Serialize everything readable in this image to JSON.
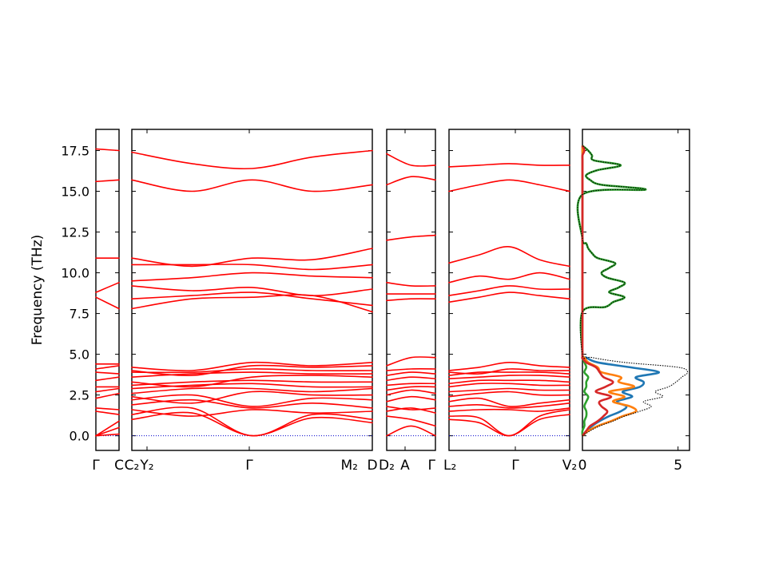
{
  "chart_data": {
    "type": "line",
    "title": "",
    "ylabel": "Frequency (THz)",
    "ylim": [
      -0.9,
      18.8
    ],
    "y_ticks": [
      "0.0",
      "2.5",
      "5.0",
      "7.5",
      "10.0",
      "12.5",
      "15.0",
      "17.5"
    ],
    "y_tick_values": [
      0,
      2.5,
      5,
      7.5,
      10,
      12.5,
      15,
      17.5
    ],
    "band_color": "#ff0000",
    "zero_line_color": "#0000cc",
    "path_labels": [
      "Γ",
      "C",
      "C₂",
      "Y₂",
      "Γ",
      "M₂",
      "D",
      "D₂",
      "A",
      "Γ",
      "L₂",
      "Γ",
      "V₂"
    ],
    "segments": [
      {
        "from": "Γ",
        "to": "C",
        "bands": [
          [
            0.0,
            0.1
          ],
          [
            0.0,
            0.5
          ],
          [
            0.0,
            0.9
          ],
          [
            1.5,
            1.3
          ],
          [
            1.7,
            1.6
          ],
          [
            2.3,
            2.6
          ],
          [
            2.7,
            2.9
          ],
          [
            3.0,
            3.0
          ],
          [
            3.4,
            3.6
          ],
          [
            3.9,
            3.8
          ],
          [
            4.1,
            4.3
          ],
          [
            4.4,
            4.4
          ],
          [
            8.5,
            7.8
          ],
          [
            8.8,
            9.4
          ],
          [
            10.9,
            10.9
          ],
          [
            15.6,
            15.7
          ],
          [
            17.6,
            17.5
          ]
        ]
      },
      {
        "from": "C₂|Y₂",
        "to": "Γ",
        "continues_to": "M₂|D",
        "bands": [
          [
            1.0,
            1.4,
            0.0,
            1.1,
            0.8
          ],
          [
            1.3,
            1.7,
            0.0,
            1.3,
            1.0
          ],
          [
            1.6,
            1.2,
            1.6,
            1.4,
            1.5
          ],
          [
            1.9,
            2.2,
            1.7,
            2.0,
            1.7
          ],
          [
            2.2,
            2.5,
            1.8,
            2.3,
            2.2
          ],
          [
            2.4,
            2.0,
            2.7,
            2.5,
            2.5
          ],
          [
            2.6,
            2.9,
            2.9,
            2.7,
            2.9
          ],
          [
            2.9,
            3.1,
            3.2,
            3.0,
            3.0
          ],
          [
            3.1,
            3.3,
            3.4,
            3.3,
            3.3
          ],
          [
            3.3,
            3.0,
            3.6,
            3.7,
            3.6
          ],
          [
            3.6,
            3.8,
            3.9,
            3.8,
            3.8
          ],
          [
            3.9,
            3.9,
            4.1,
            4.0,
            4.0
          ],
          [
            4.0,
            3.7,
            4.3,
            4.2,
            4.3
          ],
          [
            4.2,
            4.0,
            4.5,
            4.3,
            4.5
          ],
          [
            7.8,
            8.4,
            8.5,
            8.6,
            7.6
          ],
          [
            8.4,
            8.6,
            8.8,
            8.4,
            8.0
          ],
          [
            9.2,
            8.9,
            9.1,
            8.6,
            9.0
          ],
          [
            9.5,
            9.7,
            10.0,
            9.8,
            9.7
          ],
          [
            10.5,
            10.5,
            10.5,
            10.2,
            10.5
          ],
          [
            10.9,
            10.4,
            10.9,
            10.8,
            11.5
          ],
          [
            15.7,
            15.0,
            15.7,
            15.0,
            15.4
          ],
          [
            17.4,
            16.7,
            16.4,
            17.1,
            17.5
          ]
        ]
      },
      {
        "from": "D₂",
        "to": "A",
        "continues_to": "Γ",
        "bands": [
          [
            0.0,
            0.6,
            0.0
          ],
          [
            1.2,
            1.0,
            0.6
          ],
          [
            1.5,
            1.7,
            1.4
          ],
          [
            1.8,
            1.6,
            1.7
          ],
          [
            2.1,
            2.4,
            2.2
          ],
          [
            2.5,
            2.8,
            2.6
          ],
          [
            2.8,
            3.0,
            3.0
          ],
          [
            3.1,
            3.2,
            3.2
          ],
          [
            3.4,
            3.6,
            3.5
          ],
          [
            3.7,
            3.9,
            3.8
          ],
          [
            4.0,
            4.1,
            4.1
          ],
          [
            4.3,
            4.8,
            4.8
          ],
          [
            8.3,
            8.4,
            8.4
          ],
          [
            8.7,
            8.7,
            8.7
          ],
          [
            9.4,
            9.2,
            9.2
          ],
          [
            12.0,
            12.2,
            12.3
          ],
          [
            15.4,
            15.9,
            15.7
          ],
          [
            17.3,
            16.6,
            16.6
          ]
        ]
      },
      {
        "from": "L₂",
        "to": "Γ",
        "continues_to": "V₂",
        "bands": [
          [
            1.0,
            0.8,
            0.0,
            1.0,
            1.3
          ],
          [
            1.2,
            1.1,
            0.0,
            1.2,
            1.6
          ],
          [
            1.5,
            1.6,
            1.6,
            1.5,
            1.7
          ],
          [
            1.8,
            1.9,
            1.7,
            1.8,
            2.0
          ],
          [
            2.1,
            2.3,
            1.8,
            2.0,
            2.2
          ],
          [
            2.4,
            2.6,
            2.7,
            2.5,
            2.5
          ],
          [
            2.7,
            2.8,
            2.9,
            2.8,
            2.8
          ],
          [
            3.0,
            3.2,
            3.2,
            3.1,
            3.1
          ],
          [
            3.2,
            3.4,
            3.4,
            3.4,
            3.3
          ],
          [
            3.5,
            3.6,
            3.7,
            3.7,
            3.6
          ],
          [
            3.7,
            3.9,
            3.9,
            3.9,
            3.8
          ],
          [
            3.9,
            3.8,
            4.1,
            4.0,
            4.0
          ],
          [
            4.0,
            4.2,
            4.5,
            4.3,
            4.2
          ],
          [
            8.2,
            8.5,
            8.8,
            8.6,
            8.4
          ],
          [
            8.6,
            8.9,
            9.2,
            9.0,
            9.0
          ],
          [
            9.4,
            9.8,
            9.6,
            10.0,
            9.6
          ],
          [
            10.6,
            11.1,
            11.6,
            10.8,
            10.4
          ],
          [
            15.0,
            15.4,
            15.7,
            15.4,
            15.0
          ],
          [
            16.5,
            16.6,
            16.7,
            16.6,
            16.6
          ]
        ]
      }
    ],
    "dos": {
      "xlim": [
        0,
        5.6
      ],
      "x_ticks": [
        "0",
        "5"
      ],
      "x_tick_values": [
        0,
        5
      ],
      "total_color": "#000000",
      "series_colors": [
        "#1f77b4",
        "#ff7f0e",
        "#2ca02c",
        "#d62728"
      ],
      "freq": [
        0.0,
        0.3,
        0.6,
        0.9,
        1.2,
        1.5,
        1.8,
        2.1,
        2.4,
        2.7,
        3.0,
        3.3,
        3.6,
        3.9,
        4.2,
        4.5,
        4.8,
        5.0,
        7.6,
        7.9,
        8.2,
        8.5,
        8.8,
        9.1,
        9.4,
        9.7,
        10.0,
        10.3,
        10.6,
        10.9,
        11.2,
        11.5,
        11.8,
        12.1,
        14.8,
        15.1,
        15.4,
        15.7,
        16.0,
        16.3,
        16.6,
        16.9,
        17.2,
        17.5,
        17.8
      ],
      "total": [
        0.0,
        0.4,
        0.9,
        1.6,
        2.2,
        3.0,
        3.6,
        3.2,
        4.2,
        3.8,
        4.5,
        4.9,
        5.2,
        5.5,
        5.0,
        2.2,
        0.5,
        0.0,
        0.0,
        1.2,
        1.6,
        2.2,
        1.4,
        1.9,
        2.2,
        1.3,
        1.0,
        1.4,
        1.7,
        0.8,
        0.5,
        0.3,
        0.2,
        0.0,
        0.0,
        3.3,
        1.0,
        0.4,
        0.2,
        0.8,
        2.0,
        0.6,
        0.5,
        0.3,
        0.0
      ],
      "series": [
        {
          "values": [
            0.0,
            0.2,
            0.5,
            0.9,
            1.4,
            2.0,
            2.3,
            1.8,
            2.6,
            2.1,
            3.0,
            3.2,
            2.8,
            4.0,
            2.5,
            0.8,
            0.2,
            0.0,
            0.0,
            0.0,
            0.0,
            0.0,
            0.0,
            0.0,
            0.0,
            0.0,
            0.0,
            0.0,
            0.0,
            0.0,
            0.0,
            0.0,
            0.0,
            0.0,
            0.0,
            0.0,
            0.0,
            0.0,
            0.0,
            0.0,
            0.0,
            0.0,
            0.0,
            0.0,
            0.0
          ]
        },
        {
          "values": [
            0.0,
            0.3,
            0.8,
            1.5,
            2.1,
            2.8,
            2.5,
            1.6,
            2.2,
            1.4,
            2.7,
            1.9,
            2.0,
            1.0,
            0.8,
            0.3,
            0.1,
            0.0,
            0.0,
            0.0,
            0.0,
            0.0,
            0.0,
            0.0,
            0.0,
            0.0,
            0.0,
            0.0,
            0.0,
            0.0,
            0.0,
            0.0,
            0.0,
            0.0,
            0.0,
            0.0,
            0.0,
            0.0,
            0.0,
            0.0,
            0.0,
            0.0,
            0.0,
            0.0,
            0.0
          ]
        },
        {
          "values": [
            0.0,
            0.0,
            0.1,
            0.1,
            0.2,
            0.2,
            0.1,
            0.2,
            0.3,
            0.1,
            0.2,
            0.2,
            0.3,
            0.1,
            0.2,
            0.1,
            0.0,
            0.0,
            0.0,
            1.2,
            1.6,
            2.2,
            1.4,
            1.9,
            2.2,
            1.3,
            1.0,
            1.4,
            1.7,
            0.8,
            0.5,
            0.3,
            0.2,
            0.0,
            0.0,
            3.3,
            1.0,
            0.4,
            0.2,
            0.8,
            2.0,
            0.6,
            0.5,
            0.3,
            0.0
          ]
        },
        {
          "values": [
            0.0,
            0.2,
            0.4,
            0.8,
            1.1,
            1.3,
            1.0,
            0.9,
            1.5,
            0.7,
            1.2,
            1.6,
            1.1,
            0.9,
            0.7,
            0.2,
            0.0,
            0.0,
            0.0,
            0.0,
            0.0,
            0.0,
            0.0,
            0.0,
            0.0,
            0.0,
            0.0,
            0.0,
            0.0,
            0.0,
            0.0,
            0.0,
            0.0,
            0.0,
            0.0,
            0.0,
            0.0,
            0.0,
            0.0,
            0.0,
            0.0,
            0.0,
            0.0,
            0.1,
            0.0
          ]
        }
      ]
    }
  }
}
